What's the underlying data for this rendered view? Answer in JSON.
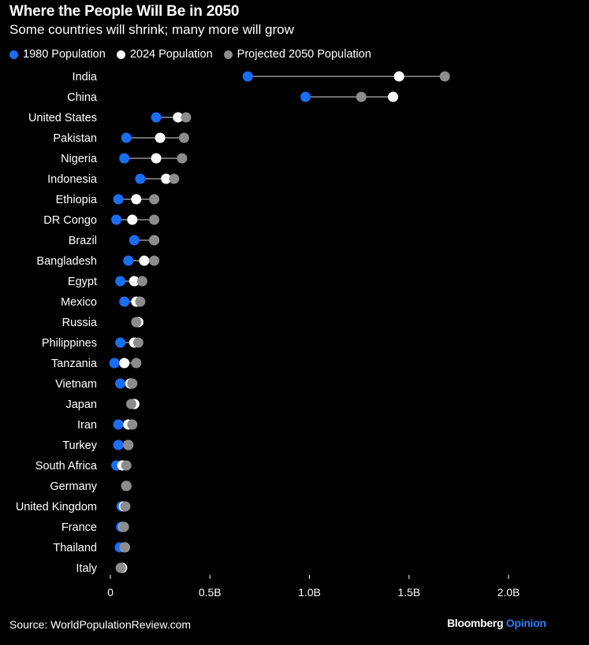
{
  "title": "Where the People Will Be in 2050",
  "subtitle": "Some countries will shrink; many more will grow",
  "source": "Source: WorldPopulationReview.com",
  "brand": {
    "name": "Bloomberg",
    "suffix": "Opinion"
  },
  "colors": {
    "background": "#000000",
    "pop1980": "#1a6ef5",
    "pop2024": "#ffffff",
    "pop2050": "#8c8c8c",
    "connector": "#6e6e6e",
    "brand_accent": "#2f7df6"
  },
  "chart_data": {
    "type": "dumbbell",
    "xlim": [
      0,
      2.0
    ],
    "x_ticks": [
      0,
      0.5,
      1.0,
      1.5,
      2.0
    ],
    "x_tick_labels": [
      "0",
      "0.5B",
      "1.0B",
      "1.5B",
      "2.0B"
    ],
    "series": [
      {
        "name": "1980 Population",
        "key": "pop1980"
      },
      {
        "name": "2024 Population",
        "key": "pop2024"
      },
      {
        "name": "Projected 2050 Population",
        "key": "pop2050"
      }
    ],
    "categories": [
      "India",
      "China",
      "United States",
      "Pakistan",
      "Nigeria",
      "Indonesia",
      "Ethiopia",
      "DR Congo",
      "Brazil",
      "Bangladesh",
      "Egypt",
      "Mexico",
      "Russia",
      "Philippines",
      "Tanzania",
      "Vietnam",
      "Japan",
      "Iran",
      "Turkey",
      "South Africa",
      "Germany",
      "United Kingdom",
      "France",
      "Thailand",
      "Italy"
    ],
    "pop1980": [
      0.69,
      0.98,
      0.23,
      0.08,
      0.07,
      0.15,
      0.04,
      0.03,
      0.12,
      0.09,
      0.05,
      0.07,
      0.14,
      0.05,
      0.02,
      0.05,
      0.12,
      0.04,
      0.04,
      0.03,
      0.08,
      0.056,
      0.054,
      0.047,
      0.056
    ],
    "pop2024": [
      1.45,
      1.42,
      0.34,
      0.25,
      0.23,
      0.28,
      0.13,
      0.11,
      0.22,
      0.17,
      0.12,
      0.13,
      0.14,
      0.12,
      0.07,
      0.1,
      0.12,
      0.09,
      0.09,
      0.06,
      0.08,
      0.068,
      0.066,
      0.072,
      0.059
    ],
    "pop2050": [
      1.68,
      1.26,
      0.38,
      0.37,
      0.36,
      0.32,
      0.22,
      0.22,
      0.22,
      0.22,
      0.16,
      0.15,
      0.13,
      0.14,
      0.13,
      0.11,
      0.105,
      0.11,
      0.09,
      0.08,
      0.08,
      0.075,
      0.068,
      0.07,
      0.052
    ]
  }
}
